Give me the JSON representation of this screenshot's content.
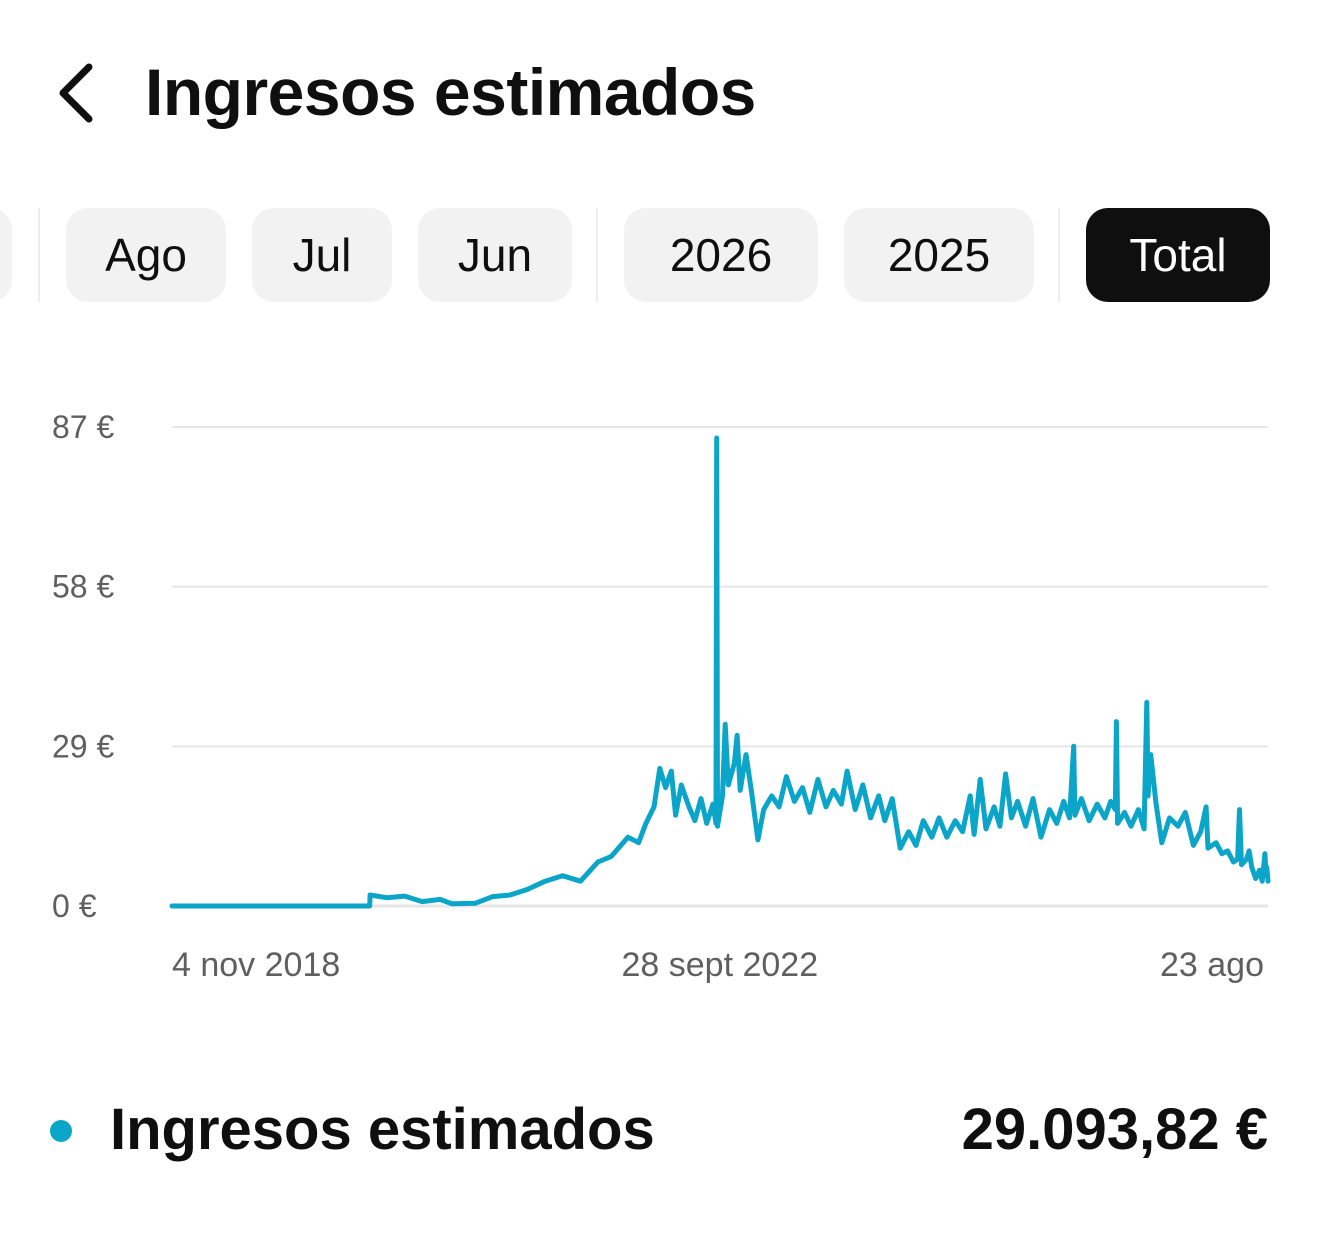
{
  "header": {
    "title": "Ingresos estimados",
    "back_icon": "chevron-left-icon"
  },
  "filters": {
    "chips": [
      "Ago",
      "Jul",
      "Jun",
      "2026",
      "2025",
      "Total"
    ],
    "selected": "Total"
  },
  "colors": {
    "series": "#0aa5c9",
    "active_chip": "#0f0f0f",
    "chip_bg": "#f2f2f2",
    "grid": "#e6e6e6"
  },
  "chart_data": {
    "type": "line",
    "y_ticks": [
      "87 €",
      "58 €",
      "29 €",
      "0 €"
    ],
    "y_tick_values": [
      87,
      58,
      29,
      0
    ],
    "ylim": [
      0,
      87
    ],
    "x_tick_labels": [
      "4 nov 2018",
      "28 sept 2022",
      "23 ago"
    ],
    "x_tick_dates": [
      "2018-11-04",
      "2022-09-28",
      "2026-08-23"
    ],
    "grid": true,
    "series": [
      {
        "values": [
          [
            "2018-11-04",
            0
          ],
          [
            "2019-04-15",
            0
          ],
          [
            "2020-04-01",
            0
          ],
          [
            "2020-04-02",
            2
          ],
          [
            "2020-05-15",
            1.5
          ],
          [
            "2020-07-01",
            1.8
          ],
          [
            "2020-08-15",
            0.8
          ],
          [
            "2020-10-01",
            1.2
          ],
          [
            "2020-11-01",
            0.4
          ],
          [
            "2021-01-01",
            0.5
          ],
          [
            "2021-02-15",
            1.7
          ],
          [
            "2021-04-01",
            2.0
          ],
          [
            "2021-05-15",
            3.0
          ],
          [
            "2021-07-01",
            4.5
          ],
          [
            "2021-08-15",
            5.5
          ],
          [
            "2021-10-01",
            4.5
          ],
          [
            "2021-11-15",
            8.0
          ],
          [
            "2021-12-20",
            9.0
          ],
          [
            "2022-02-01",
            12.5
          ],
          [
            "2022-03-01",
            11.5
          ],
          [
            "2022-03-20",
            15.0
          ],
          [
            "2022-04-10",
            18.0
          ],
          [
            "2022-04-25",
            25.0
          ],
          [
            "2022-05-10",
            21.5
          ],
          [
            "2022-05-25",
            24.5
          ],
          [
            "2022-06-05",
            16.5
          ],
          [
            "2022-06-20",
            22.0
          ],
          [
            "2022-07-10",
            18.0
          ],
          [
            "2022-07-25",
            15.5
          ],
          [
            "2022-08-10",
            19.5
          ],
          [
            "2022-08-25",
            15.0
          ],
          [
            "2022-09-10",
            18.5
          ],
          [
            "2022-09-18",
            15.0
          ],
          [
            "2022-09-20",
            85.0
          ],
          [
            "2022-09-22",
            14.5
          ],
          [
            "2022-10-05",
            20.0
          ],
          [
            "2022-10-12",
            33.0
          ],
          [
            "2022-10-20",
            22.0
          ],
          [
            "2022-11-05",
            26.0
          ],
          [
            "2022-11-12",
            31.0
          ],
          [
            "2022-11-20",
            21.0
          ],
          [
            "2022-12-05",
            27.5
          ],
          [
            "2022-12-20",
            20.5
          ],
          [
            "2023-01-05",
            12.0
          ],
          [
            "2023-01-20",
            17.5
          ],
          [
            "2023-02-10",
            20.0
          ],
          [
            "2023-03-01",
            18.0
          ],
          [
            "2023-03-20",
            23.5
          ],
          [
            "2023-04-10",
            19.0
          ],
          [
            "2023-05-01",
            21.5
          ],
          [
            "2023-05-20",
            17.0
          ],
          [
            "2023-06-10",
            23.0
          ],
          [
            "2023-07-01",
            18.0
          ],
          [
            "2023-07-20",
            21.0
          ],
          [
            "2023-08-10",
            18.5
          ],
          [
            "2023-08-25",
            24.5
          ],
          [
            "2023-09-15",
            17.5
          ],
          [
            "2023-10-05",
            22.0
          ],
          [
            "2023-10-25",
            16.0
          ],
          [
            "2023-11-15",
            20.0
          ],
          [
            "2023-12-01",
            15.5
          ],
          [
            "2023-12-20",
            19.5
          ],
          [
            "2024-01-10",
            10.5
          ],
          [
            "2024-02-01",
            13.5
          ],
          [
            "2024-02-20",
            11.0
          ],
          [
            "2024-03-10",
            15.5
          ],
          [
            "2024-04-01",
            12.5
          ],
          [
            "2024-04-20",
            16.0
          ],
          [
            "2024-05-10",
            12.5
          ],
          [
            "2024-06-01",
            15.5
          ],
          [
            "2024-06-20",
            13.5
          ],
          [
            "2024-07-10",
            20.0
          ],
          [
            "2024-07-20",
            13.0
          ],
          [
            "2024-08-05",
            23.0
          ],
          [
            "2024-08-20",
            14.0
          ],
          [
            "2024-09-10",
            18.0
          ],
          [
            "2024-09-25",
            14.5
          ],
          [
            "2024-10-10",
            24.0
          ],
          [
            "2024-10-25",
            16.0
          ],
          [
            "2024-11-10",
            19.0
          ],
          [
            "2024-12-01",
            14.5
          ],
          [
            "2024-12-20",
            19.5
          ],
          [
            "2025-01-10",
            12.5
          ],
          [
            "2025-02-01",
            17.5
          ],
          [
            "2025-02-20",
            15.0
          ],
          [
            "2025-03-10",
            19.0
          ],
          [
            "2025-03-25",
            16.0
          ],
          [
            "2025-04-05",
            29.0
          ],
          [
            "2025-04-08",
            16.5
          ],
          [
            "2025-04-25",
            19.5
          ],
          [
            "2025-05-15",
            15.5
          ],
          [
            "2025-06-05",
            18.5
          ],
          [
            "2025-06-25",
            16.0
          ],
          [
            "2025-07-10",
            19.0
          ],
          [
            "2025-07-22",
            17.5
          ],
          [
            "2025-07-25",
            33.5
          ],
          [
            "2025-07-28",
            15.0
          ],
          [
            "2025-08-15",
            17.0
          ],
          [
            "2025-09-01",
            14.5
          ],
          [
            "2025-09-20",
            17.5
          ],
          [
            "2025-10-05",
            14.0
          ],
          [
            "2025-10-12",
            37.0
          ],
          [
            "2025-10-15",
            20.0
          ],
          [
            "2025-10-22",
            27.5
          ],
          [
            "2025-11-05",
            18.5
          ],
          [
            "2025-11-20",
            11.5
          ],
          [
            "2025-12-10",
            16.0
          ],
          [
            "2026-01-01",
            14.5
          ],
          [
            "2026-01-20",
            17.0
          ],
          [
            "2026-02-10",
            11.0
          ],
          [
            "2026-03-01",
            13.5
          ],
          [
            "2026-03-15",
            18.0
          ],
          [
            "2026-03-20",
            10.5
          ],
          [
            "2026-04-10",
            11.5
          ],
          [
            "2026-04-25",
            9.5
          ],
          [
            "2026-05-10",
            10.0
          ],
          [
            "2026-05-25",
            8.0
          ],
          [
            "2026-06-05",
            8.5
          ],
          [
            "2026-06-10",
            17.5
          ],
          [
            "2026-06-15",
            7.5
          ],
          [
            "2026-06-28",
            8.5
          ],
          [
            "2026-07-05",
            10.0
          ],
          [
            "2026-07-12",
            7.0
          ],
          [
            "2026-07-22",
            5.0
          ],
          [
            "2026-08-01",
            6.5
          ],
          [
            "2026-08-08",
            4.5
          ],
          [
            "2026-08-15",
            9.5
          ],
          [
            "2026-08-18",
            5.5
          ],
          [
            "2026-08-20",
            7.0
          ],
          [
            "2026-08-23",
            4.5
          ]
        ]
      }
    ]
  },
  "legend": {
    "label": "Ingresos estimados",
    "total": "29.093,82 €"
  }
}
